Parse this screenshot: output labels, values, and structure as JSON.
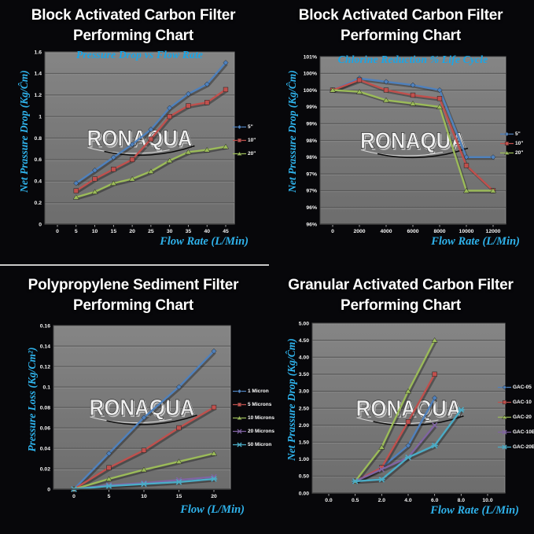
{
  "page": {
    "background": "#07070a",
    "divider_color": "#c9c9c9",
    "accent_cyan": "#2fb3ec",
    "title_color": "#ffffff",
    "plot_background": "#767676",
    "grid_color": "#585858"
  },
  "watermark": {
    "text": "RONAQUA"
  },
  "chart_data": [
    {
      "type": "line",
      "title": "Block Activated Carbon Filter Performing Chart",
      "title_lines": [
        "Block Activated Carbon Filter",
        "Performing Chart"
      ],
      "subtitle": "Pressure Drop vs Flow Rate",
      "xlabel": "Flow Rate (L/Min)",
      "ylabel": "Net Prassure Drop (Kg/Ĉm)",
      "categories": [
        "0",
        "5",
        "10",
        "15",
        "20",
        "25",
        "30",
        "35",
        "40",
        "45"
      ],
      "y_tick_labels": [
        "0",
        "0.2",
        "0.4",
        "0.6",
        "0.8",
        "1",
        "1.2",
        "1.4",
        "1.6"
      ],
      "ylim": [
        0,
        1.6
      ],
      "grid": true,
      "legend_position": "right",
      "series": [
        {
          "name": "5\"",
          "color": "#4F81BD",
          "marker": "diamond",
          "values": [
            null,
            0.38,
            0.5,
            0.62,
            0.74,
            0.88,
            1.08,
            1.21,
            1.3,
            1.5
          ]
        },
        {
          "name": "10\"",
          "color": "#C0504D",
          "marker": "square",
          "values": [
            null,
            0.31,
            0.42,
            0.51,
            0.6,
            0.79,
            1.0,
            1.1,
            1.13,
            1.25
          ]
        },
        {
          "name": "20\"",
          "color": "#9BBB59",
          "marker": "triangle",
          "values": [
            null,
            0.25,
            0.3,
            0.38,
            0.42,
            0.49,
            0.59,
            0.67,
            0.69,
            0.72
          ]
        }
      ]
    },
    {
      "type": "line",
      "title": "Block Activated Carbon Filter Performing Chart",
      "title_lines": [
        "Block Activated Carbon Filter",
        "Performing Chart"
      ],
      "subtitle": "Chlorine Reduction % Life Cycle",
      "xlabel": "Flow Rate (L/Min)",
      "ylabel": "Net Prassure Drop (Kg/Ĉm)",
      "categories": [
        "0",
        "2000",
        "4000",
        "6000",
        "8000",
        "10000",
        "12000"
      ],
      "y_tick_labels": [
        "96%",
        "96%",
        "97%",
        "97%",
        "98%",
        "98%",
        "99%",
        "99%",
        "100%",
        "100%",
        "101%"
      ],
      "ylim": [
        96,
        101
      ],
      "grid": true,
      "legend_position": "right",
      "series": [
        {
          "name": "5\"",
          "color": "#4F81BD",
          "marker": "diamond",
          "values": [
            100,
            100.35,
            100.25,
            100.15,
            100.0,
            98.0,
            98.0
          ]
        },
        {
          "name": "10\"",
          "color": "#C0504D",
          "marker": "square",
          "values": [
            100,
            100.3,
            100.0,
            99.85,
            99.75,
            97.75,
            97.0
          ]
        },
        {
          "name": "20\"",
          "color": "#9BBB59",
          "marker": "triangle",
          "values": [
            100,
            99.95,
            99.7,
            99.6,
            99.5,
            97.0,
            97.0
          ]
        }
      ]
    },
    {
      "type": "line",
      "title": "Polypropylene Sediment Filter Performing Chart",
      "title_lines": [
        "Polypropylene Sediment Filter",
        "Performing Chart"
      ],
      "xlabel": "Flow (L/Min)",
      "ylabel": "Pressure Loss (Kg/Cm²)",
      "categories": [
        "0",
        "5",
        "10",
        "15",
        "20"
      ],
      "y_tick_labels": [
        "0",
        "0.02",
        "0.04",
        "0.06",
        "0.08",
        "0.1",
        "0.12",
        "0.14",
        "0.16"
      ],
      "ylim": [
        0,
        0.16
      ],
      "grid": true,
      "legend_position": "right",
      "series": [
        {
          "name": "1 Micron",
          "color": "#4F81BD",
          "marker": "diamond",
          "values": [
            0,
            0.035,
            0.07,
            0.1,
            0.135
          ]
        },
        {
          "name": "5 Microns",
          "color": "#C0504D",
          "marker": "square",
          "values": [
            0,
            0.021,
            0.038,
            0.06,
            0.08
          ]
        },
        {
          "name": "10 Microns",
          "color": "#9BBB59",
          "marker": "triangle",
          "values": [
            0,
            0.01,
            0.019,
            0.027,
            0.035
          ]
        },
        {
          "name": "20 Microns",
          "color": "#8064A2",
          "marker": "x",
          "values": [
            0,
            0.004,
            0.006,
            0.009,
            0.012
          ]
        },
        {
          "name": "50 Micron",
          "color": "#4BACC6",
          "marker": "star",
          "values": [
            0,
            0.003,
            0.005,
            0.007,
            0.01
          ]
        }
      ]
    },
    {
      "type": "line",
      "title": "Granular Activated Carbon Filter Performing Chart",
      "title_lines": [
        "Granular Activated Carbon Filter",
        "Performing Chart"
      ],
      "xlabel": "Flow Rate (L/Min)",
      "ylabel": "Net Prassure Drop (Kg/Ĉm)",
      "categories": [
        "0.0",
        "0.5",
        "2.0",
        "4.0",
        "6.0",
        "8.0",
        "10.0"
      ],
      "y_tick_labels": [
        "0.00",
        "0.50",
        "1.00",
        "1.50",
        "2.00",
        "2.50",
        "3.00",
        "3.50",
        "4.00",
        "4.50",
        "5.00"
      ],
      "ylim": [
        0,
        5
      ],
      "grid": true,
      "legend_position": "right",
      "series": [
        {
          "name": "GAC-05",
          "color": "#4F81BD",
          "marker": "diamond",
          "values": [
            null,
            0.35,
            0.75,
            1.4,
            2.8,
            null,
            null
          ]
        },
        {
          "name": "GAC-10",
          "color": "#C0504D",
          "marker": "square",
          "values": [
            null,
            0.35,
            0.75,
            2.1,
            3.5,
            null,
            null
          ]
        },
        {
          "name": "GAC-20",
          "color": "#9BBB59",
          "marker": "triangle",
          "values": [
            null,
            0.35,
            1.35,
            3.0,
            4.5,
            null,
            null
          ]
        },
        {
          "name": "GAC-10BB",
          "color": "#8064A2",
          "marker": "x",
          "values": [
            null,
            0.35,
            0.7,
            1.05,
            2.0,
            null,
            null
          ]
        },
        {
          "name": "GAC-20BB",
          "color": "#4BACC6",
          "marker": "star",
          "values": [
            null,
            0.35,
            0.4,
            1.05,
            1.4,
            2.45,
            null
          ]
        }
      ]
    }
  ]
}
